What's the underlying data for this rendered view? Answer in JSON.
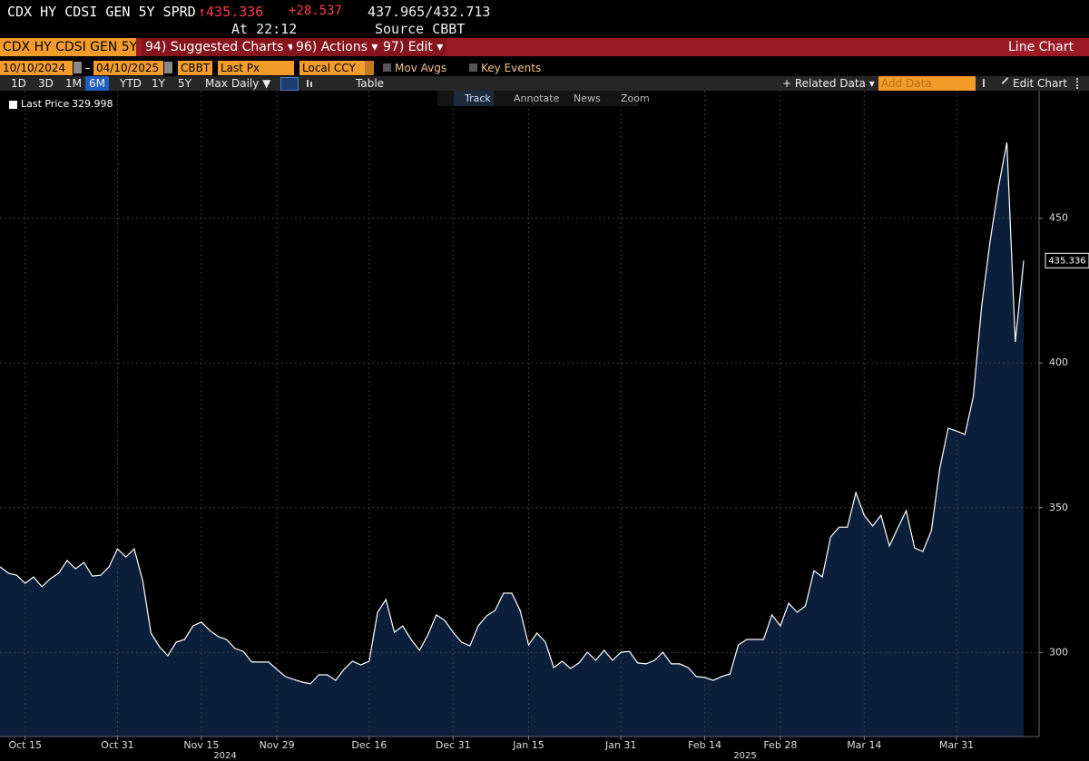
{
  "header": {
    "ticker": "CDX HY CDSI GEN 5Y SPRD",
    "price": "↑435.336",
    "change": "+28.537",
    "high_low": "437.965/432.713",
    "time": "At 22:12",
    "source": "Source CBBT"
  },
  "menu": {
    "security": "CDX HY CDSI GEN 5Y",
    "items": [
      "94) Suggested Charts ▾",
      "96) Actions ▾",
      "97) Edit ▾"
    ],
    "chart_kind": "Line Chart"
  },
  "inputs": {
    "start": "10/10/2024",
    "end": "04/10/2025",
    "source": "CBBT",
    "field": "Last Px",
    "currency": "Local CCY",
    "options": [
      "Mov Avgs",
      "Key Events"
    ]
  },
  "toolbar": {
    "periods": [
      "1D",
      "3D",
      "1M",
      "6M",
      "YTD",
      "1Y",
      "5Y",
      "Max"
    ],
    "active_period": "6M",
    "frequency": "Daily ▼",
    "table": "Table",
    "related": "+ Related Data ▾",
    "add_data": "Add Data",
    "edit_chart": "Edit Chart"
  },
  "tools": [
    "Track",
    "Annotate",
    "News",
    "Zoom"
  ],
  "chart_data": {
    "type": "area",
    "legend_value": 329.998,
    "categories": [
      null,
      null,
      null,
      "Oct 15",
      null,
      null,
      null,
      null,
      null,
      null,
      null,
      null,
      null,
      null,
      "Oct 31",
      null,
      null,
      null,
      null,
      null,
      null,
      null,
      null,
      null,
      "Nov 15",
      null,
      null,
      null,
      null,
      null,
      null,
      null,
      null,
      "Nov 29",
      null,
      null,
      null,
      null,
      null,
      null,
      null,
      null,
      null,
      null,
      "Dec 16",
      null,
      null,
      null,
      null,
      null,
      null,
      null,
      null,
      null,
      "Dec 31",
      null,
      null,
      null,
      null,
      null,
      null,
      null,
      null,
      "Jan 15",
      null,
      null,
      null,
      null,
      null,
      null,
      null,
      null,
      null,
      null,
      "Jan 31",
      null,
      null,
      null,
      null,
      null,
      null,
      null,
      null,
      null,
      "Feb 14",
      null,
      null,
      null,
      null,
      null,
      null,
      null,
      null,
      "Feb 28",
      null,
      null,
      null,
      null,
      null,
      null,
      null,
      null,
      null,
      "Mar 14",
      null,
      null,
      null,
      null,
      null,
      null,
      null,
      null,
      null,
      null,
      "Mar 31",
      null,
      null,
      null,
      null,
      null,
      null,
      null,
      null
    ],
    "year_labels": [
      "2024",
      "2025"
    ],
    "series": [
      {
        "name": "Last Price",
        "color": "#ffffff",
        "fill": "#0c1f3a",
        "values": [
          329.6,
          327.4,
          326.7,
          323.9,
          326.1,
          322.7,
          325.5,
          327.4,
          331.8,
          328.9,
          331.1,
          326.4,
          326.7,
          329.6,
          335.8,
          333.0,
          335.8,
          324.9,
          306.7,
          302.0,
          298.9,
          303.6,
          304.5,
          309.2,
          310.5,
          307.6,
          305.5,
          304.5,
          301.4,
          300.4,
          296.7,
          296.7,
          296.7,
          294.2,
          291.7,
          290.7,
          289.8,
          289.2,
          292.3,
          292.3,
          290.4,
          294.2,
          297.0,
          295.7,
          297.0,
          313.9,
          318.3,
          307.0,
          309.2,
          304.5,
          300.8,
          306.1,
          313.0,
          311.1,
          307.0,
          303.6,
          302.3,
          309.2,
          312.7,
          314.5,
          320.5,
          320.5,
          314.5,
          302.6,
          306.7,
          303.6,
          294.8,
          297.0,
          294.5,
          296.4,
          300.1,
          297.3,
          300.8,
          297.3,
          300.1,
          300.4,
          296.4,
          296.1,
          297.3,
          300.1,
          296.1,
          296.1,
          294.8,
          291.7,
          291.4,
          290.4,
          291.7,
          292.6,
          302.6,
          304.5,
          304.5,
          304.5,
          313.0,
          309.2,
          317.0,
          313.9,
          316.1,
          328.3,
          326.1,
          339.9,
          343.3,
          343.3,
          355.2,
          347.4,
          343.7,
          347.4,
          336.8,
          343.0,
          349.0,
          336.1,
          334.9,
          342.1,
          363.4,
          377.5,
          376.5,
          375.3,
          388.4,
          419.8,
          442.0,
          460.8,
          476.1,
          407.2,
          435.336
        ]
      }
    ],
    "ylim": [
      271,
      494
    ],
    "yticks": [
      300,
      350,
      400,
      450
    ],
    "grid": true
  }
}
